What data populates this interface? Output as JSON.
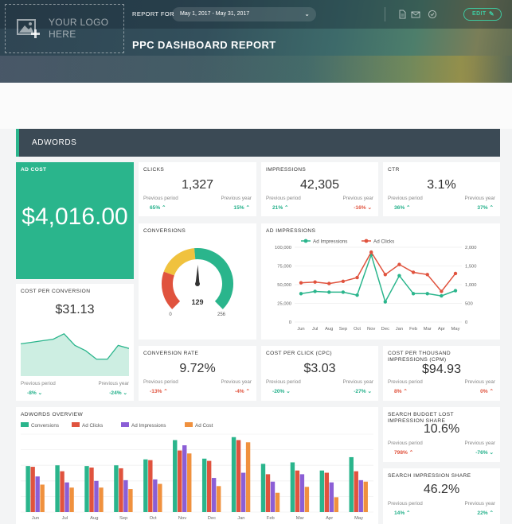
{
  "header": {
    "logo_text_line1": "YOUR LOGO",
    "logo_text_line2": "HERE",
    "report_for_label": "REPORT FOR",
    "date_range": "May 1, 2017 - May 31, 2017",
    "edit_label": "EDIT",
    "title": "PPC DASHBOARD REPORT"
  },
  "section": {
    "title": "ADWORDS"
  },
  "ad_cost": {
    "title": "AD COST",
    "value": "$4,016.00"
  },
  "clicks": {
    "title": "CLICKS",
    "value": "1,327",
    "prev_period_label": "Previous period",
    "prev_year_label": "Previous year",
    "prev_period": "65%",
    "prev_year": "15%"
  },
  "impressions": {
    "title": "IMPRESSIONS",
    "value": "42,305",
    "prev_period_label": "Previous period",
    "prev_year_label": "Previous year",
    "prev_period": "21%",
    "prev_year": "-16%"
  },
  "ctr": {
    "title": "CTR",
    "value": "3.1%",
    "prev_period_label": "Previous period",
    "prev_year_label": "Previous year",
    "prev_period": "36%",
    "prev_year": "37%"
  },
  "conversions": {
    "title": "CONVERSIONS",
    "value": "129",
    "min": "0",
    "max": "256",
    "fraction": 0.504
  },
  "cost_per_conversion": {
    "title": "COST PER CONVERSION",
    "value": "$31.13",
    "prev_period_label": "Previous period",
    "prev_year_label": "Previous year",
    "prev_period": "-8%",
    "prev_year": "-24%",
    "sparkline": [
      42,
      44,
      46,
      48,
      55,
      40,
      33,
      22,
      22,
      40,
      36
    ]
  },
  "conversion_rate": {
    "title": "CONVERSION RATE",
    "value": "9.72%",
    "prev_period_label": "Previous period",
    "prev_year_label": "Previous year",
    "prev_period": "-13%",
    "prev_year": "-4%"
  },
  "cpc": {
    "title": "COST PER CLICK (CPC)",
    "value": "$3.03",
    "prev_period_label": "Previous period",
    "prev_year_label": "Previous year",
    "prev_period": "-20%",
    "prev_year": "-27%"
  },
  "cpm": {
    "title_line1": "COST PER THOUSAND",
    "title_line2": "IMPRESSIONS (CPM)",
    "value": "$94.93",
    "prev_period_label": "Previous period",
    "prev_year_label": "Previous year",
    "prev_period": "8%",
    "prev_year": "0%"
  },
  "search_lost": {
    "title_line1": "SEARCH BUDGET LOST",
    "title_line2": "IMPRESSION SHARE",
    "value": "10.6%",
    "prev_period_label": "Previous period",
    "prev_year_label": "Previous year",
    "prev_period": "798%",
    "prev_year": "-76%"
  },
  "search_share": {
    "title": "SEARCH IMPRESSION SHARE",
    "value": "46.2%",
    "prev_period_label": "Previous period",
    "prev_year_label": "Previous year",
    "prev_period": "14%",
    "prev_year": "22%"
  },
  "chart_data": [
    {
      "type": "line",
      "title": "AD IMPRESSIONS",
      "categories": [
        "Jun",
        "Jul",
        "Aug",
        "Sep",
        "Oct",
        "Nov",
        "Dec",
        "Jan",
        "Feb",
        "Mar",
        "Apr",
        "May"
      ],
      "series": [
        {
          "name": "Ad Impressions",
          "axis": "left",
          "color": "#2ab58c",
          "values": [
            38000,
            41000,
            40000,
            40000,
            36000,
            90000,
            27000,
            62000,
            38000,
            38000,
            35000,
            42000
          ]
        },
        {
          "name": "Ad Clicks",
          "axis": "right",
          "color": "#e0533e",
          "values": [
            1050,
            1070,
            1030,
            1090,
            1190,
            1870,
            1270,
            1540,
            1330,
            1270,
            820,
            1300
          ]
        }
      ],
      "y_left_ticks": [
        "0",
        "25,000",
        "50,000",
        "75,000",
        "100,000"
      ],
      "y_right_ticks": [
        "0",
        "500",
        "1,000",
        "1,500",
        "2,000"
      ],
      "ylim_left": [
        0,
        100000
      ],
      "ylim_right": [
        0,
        2000
      ],
      "legend": "top"
    },
    {
      "type": "bar",
      "title": "ADWORDS OVERVIEW",
      "categories": [
        "Jun",
        "Jul",
        "Aug",
        "Sep",
        "Oct",
        "Nov",
        "Dec",
        "Jan",
        "Feb",
        "Mar",
        "Apr",
        "May"
      ],
      "series": [
        {
          "name": "Conversions",
          "color": "#2ab58c",
          "values": [
            62,
            63,
            62,
            63,
            71,
            97,
            72,
            101,
            65,
            67,
            56,
            74
          ]
        },
        {
          "name": "Ad Clicks",
          "color": "#e0533e",
          "values": [
            61,
            55,
            60,
            59,
            70,
            83,
            69,
            97,
            51,
            56,
            53,
            55
          ]
        },
        {
          "name": "Ad Impressions",
          "color": "#8b5ed6",
          "values": [
            48,
            40,
            42,
            43,
            44,
            90,
            46,
            53,
            41,
            51,
            40,
            43
          ]
        },
        {
          "name": "Ad Cost",
          "color": "#f0913e",
          "values": [
            37,
            33,
            33,
            31,
            38,
            79,
            35,
            94,
            26,
            34,
            20,
            41
          ]
        }
      ],
      "legend": "top"
    }
  ]
}
